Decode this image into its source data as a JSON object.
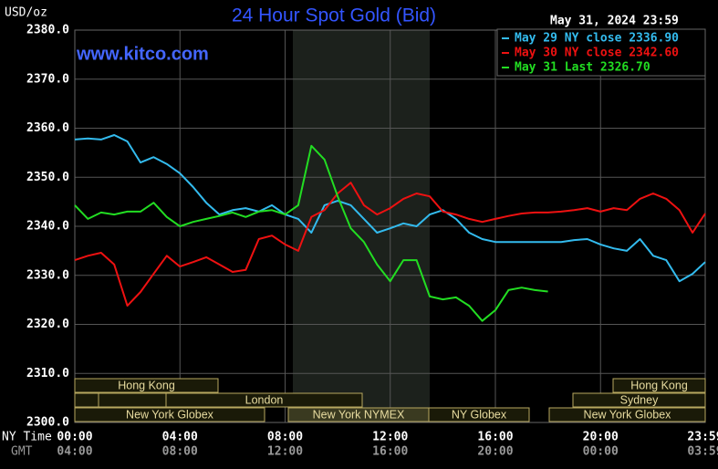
{
  "chart_data": {
    "type": "line",
    "title": "24 Hour Spot Gold (Bid)",
    "unit_label": "USD/oz",
    "timestamp": "May 31, 2024 23:59",
    "watermark": "www.kitco.com",
    "x_label_primary": "NY Time",
    "x_label_secondary": "GMT",
    "x": [
      0,
      0.5,
      1,
      1.5,
      2,
      2.5,
      3,
      3.5,
      4,
      4.5,
      5,
      5.5,
      6,
      6.5,
      7,
      7.5,
      8,
      8.5,
      9,
      9.5,
      10,
      10.5,
      11,
      11.5,
      12,
      12.5,
      13,
      13.5,
      14,
      14.5,
      15,
      15.5,
      16,
      16.5,
      17,
      17.5,
      18,
      18.5,
      19,
      19.5,
      20,
      20.5,
      21,
      21.5,
      22,
      22.5,
      23,
      23.5,
      23.983
    ],
    "xlim": [
      0,
      23.983
    ],
    "xticks": [
      {
        "value": 0,
        "label": "00:00"
      },
      {
        "value": 4,
        "label": "04:00"
      },
      {
        "value": 8,
        "label": "08:00"
      },
      {
        "value": 12,
        "label": "12:00"
      },
      {
        "value": 16,
        "label": "16:00"
      },
      {
        "value": 20,
        "label": "20:00"
      },
      {
        "value": 23.983,
        "label": "23:59"
      }
    ],
    "gmt_ticks": [
      "04:00",
      "08:00",
      "12:00",
      "16:00",
      "20:00",
      "00:00",
      "03:59"
    ],
    "ylim": [
      2300,
      2380
    ],
    "yticks": [
      {
        "value": 2300,
        "label": "2300.0"
      },
      {
        "value": 2310,
        "label": "2310.0"
      },
      {
        "value": 2320,
        "label": "2320.0"
      },
      {
        "value": 2330,
        "label": "2330.0"
      },
      {
        "value": 2340,
        "label": "2340.0"
      },
      {
        "value": 2350,
        "label": "2350.0"
      },
      {
        "value": 2360,
        "label": "2360.0"
      },
      {
        "value": 2370,
        "label": "2370.0"
      },
      {
        "value": 2380,
        "label": "2380.0"
      }
    ],
    "grid": true,
    "legend": "top-right",
    "sessions": [
      "Hong Kong",
      "London",
      "New York Globex",
      "New York NYMEX",
      "NY Globex",
      "Hong Kong",
      "Sydney",
      "New York Globex"
    ],
    "series": [
      {
        "name": "May 29 NY close 2336.90",
        "color": "#33bbee",
        "values": [
          2357.7,
          2357.9,
          2357.7,
          2358.6,
          2357.3,
          2353,
          2354.1,
          2352.7,
          2350.8,
          2348,
          2344.8,
          2342.4,
          2343.3,
          2343.7,
          2343,
          2344.3,
          2342.4,
          2341.5,
          2338.7,
          2344.3,
          2345.2,
          2344.3,
          2341.5,
          2338.7,
          2339.6,
          2340.6,
          2340,
          2342.4,
          2343.3,
          2341.5,
          2338.7,
          2337.4,
          2336.8,
          2336.8,
          2336.8,
          2336.8,
          2336.8,
          2336.8,
          2337.2,
          2337.4,
          2336.3,
          2335.5,
          2335,
          2337.4,
          2334,
          2333.1,
          2328.8,
          2330.3,
          2332.7
        ]
      },
      {
        "name": "May 30 NY close 2342.60",
        "color": "#ee1111",
        "values": [
          2333.1,
          2334,
          2334.6,
          2332.2,
          2323.8,
          2326.6,
          2330.3,
          2334,
          2331.8,
          2332.7,
          2333.7,
          2332.2,
          2330.7,
          2331.1,
          2337.4,
          2338.1,
          2336.3,
          2335,
          2341.9,
          2343.3,
          2346.7,
          2348.9,
          2344.3,
          2342.4,
          2343.7,
          2345.6,
          2346.7,
          2346.1,
          2343,
          2342.4,
          2341.5,
          2340.9,
          2341.5,
          2342.1,
          2342.6,
          2342.8,
          2342.8,
          2343,
          2343.3,
          2343.7,
          2343,
          2343.7,
          2343.3,
          2345.6,
          2346.7,
          2345.6,
          2343.3,
          2338.7,
          2342.6
        ]
      },
      {
        "name": "May 31 Last 2326.70",
        "color": "#22dd22",
        "values": [
          2344.3,
          2341.5,
          2342.8,
          2342.4,
          2343,
          2343,
          2344.8,
          2341.9,
          2340,
          2340.9,
          2341.5,
          2342.1,
          2342.8,
          2341.9,
          2343,
          2343.3,
          2342.4,
          2344.3,
          2356.4,
          2353.6,
          2346.1,
          2339.6,
          2336.8,
          2332.2,
          2328.8,
          2333.1,
          2333.1,
          2325.7,
          2325.1,
          2325.5,
          2323.8,
          2320.7,
          2322.9,
          2327,
          2327.5,
          2327,
          2326.7,
          null,
          null,
          null,
          null,
          null,
          null,
          null,
          null,
          null,
          null,
          null,
          null
        ]
      }
    ]
  }
}
